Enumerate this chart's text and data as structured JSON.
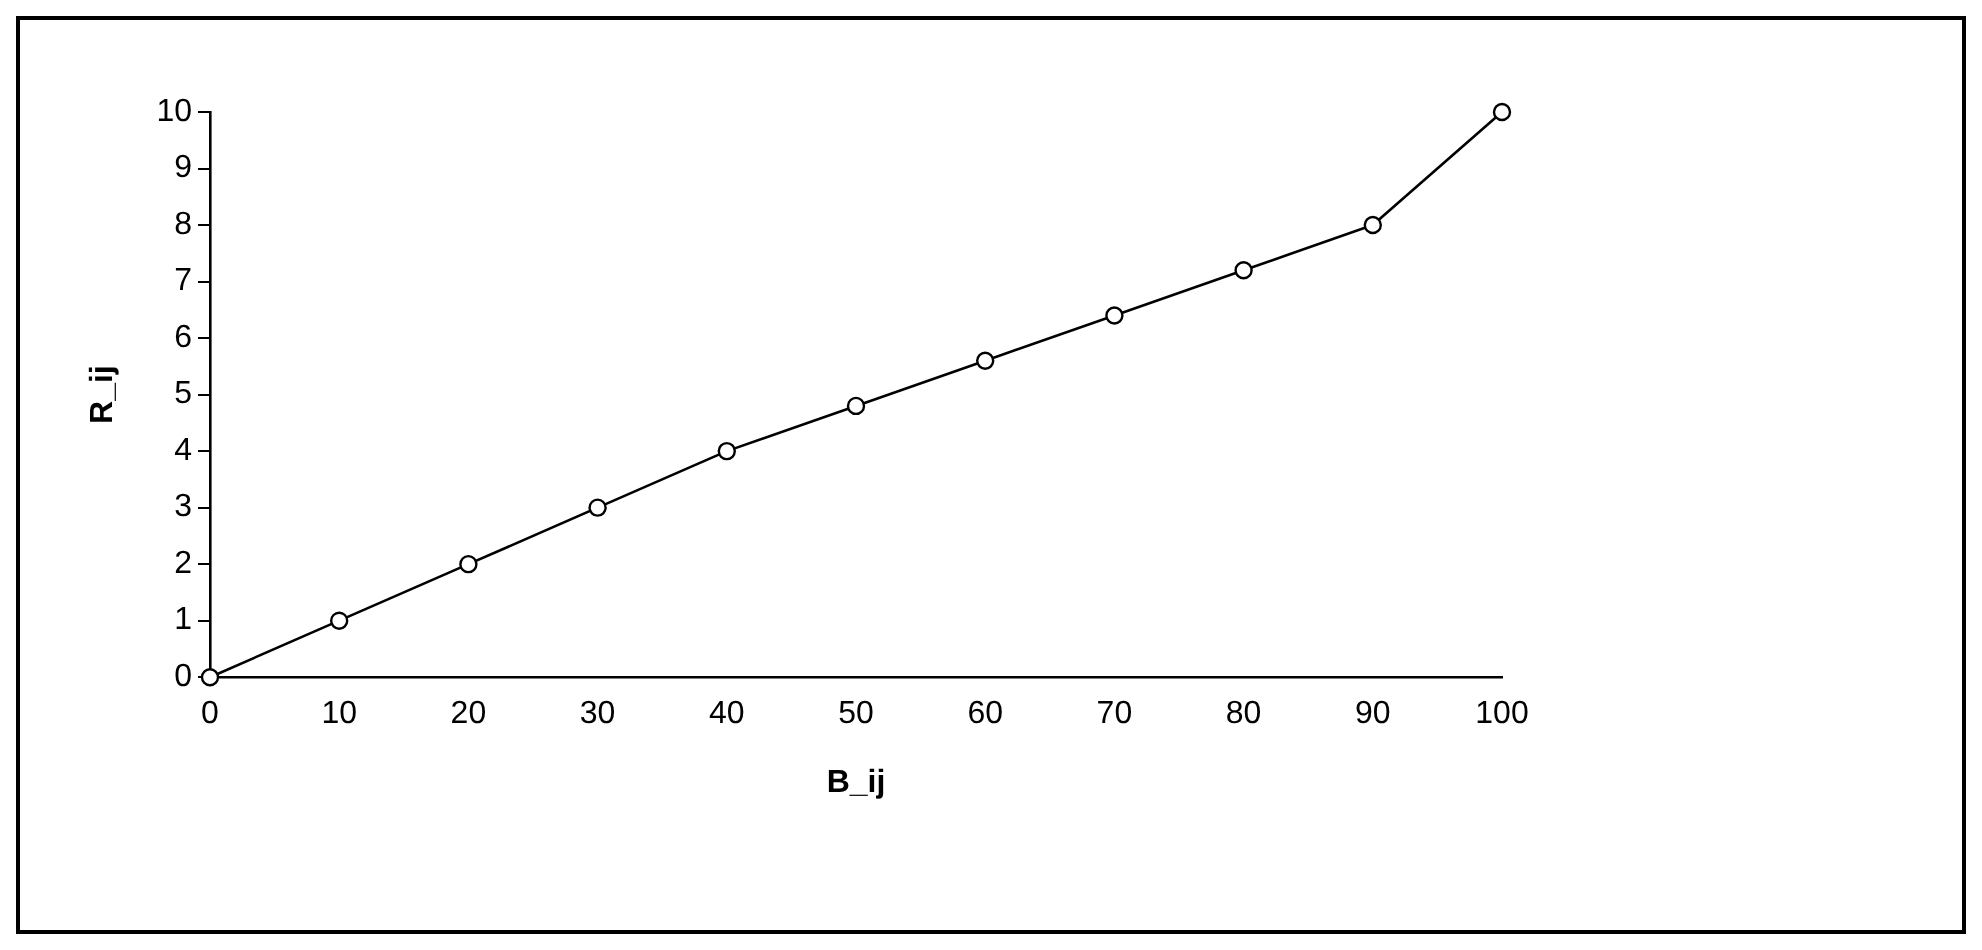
{
  "chart_data": {
    "type": "line",
    "xlabel": "B_ij",
    "ylabel": "R_ij",
    "x": [
      0,
      10,
      20,
      30,
      40,
      50,
      60,
      70,
      80,
      90,
      100
    ],
    "series": [
      {
        "color": "#000000",
        "values": [
          0,
          1,
          2,
          3,
          4,
          4.8,
          5.6,
          6.4,
          7.2,
          8,
          10
        ]
      }
    ],
    "xlim": [
      0,
      100
    ],
    "xticks": [
      0,
      10,
      20,
      30,
      40,
      50,
      60,
      70,
      80,
      90,
      100
    ],
    "ylim": [
      0,
      10
    ],
    "yticks": [
      0,
      1,
      2,
      3,
      4,
      5,
      6,
      7,
      8,
      9,
      10
    ],
    "grid": false,
    "legend": false,
    "marker": "circle",
    "line_style": "solid"
  }
}
